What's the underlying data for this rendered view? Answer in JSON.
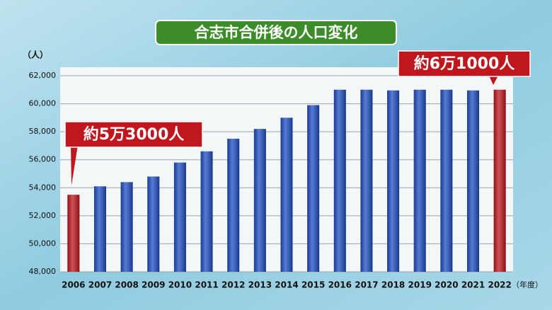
{
  "chart_data": {
    "type": "bar",
    "title": "合志市合併後の人口変化",
    "y_label": "（人）",
    "x_label": "（年度）",
    "annotations": [
      "約5万3000人",
      "約6万1000人"
    ],
    "categories": [
      "2006",
      "2007",
      "2008",
      "2009",
      "2010",
      "2011",
      "2012",
      "2013",
      "2014",
      "2015",
      "2016",
      "2017",
      "2018",
      "2019",
      "2020",
      "2021",
      "2022"
    ],
    "values": [
      53500,
      54100,
      54400,
      54800,
      55800,
      56600,
      57500,
      58200,
      59000,
      59900,
      61000,
      61000,
      60950,
      61000,
      61000,
      60950,
      61000
    ],
    "colors": [
      "#c0161d",
      "#1f4fc4",
      "#1f4fc4",
      "#1f4fc4",
      "#1f4fc4",
      "#1f4fc4",
      "#1f4fc4",
      "#1f4fc4",
      "#1f4fc4",
      "#1f4fc4",
      "#1f4fc4",
      "#1f4fc4",
      "#1f4fc4",
      "#1f4fc4",
      "#1f4fc4",
      "#1f4fc4",
      "#c0161d"
    ],
    "ylim": [
      48000,
      62000
    ],
    "yticks": [
      {
        "value": 48000,
        "label": "48,000"
      },
      {
        "value": 50000,
        "label": "50,000"
      },
      {
        "value": 52000,
        "label": "52,000"
      },
      {
        "value": 54000,
        "label": "54,000"
      },
      {
        "value": 56000,
        "label": "56,000"
      },
      {
        "value": 58000,
        "label": "58,000"
      },
      {
        "value": 60000,
        "label": "60,000"
      },
      {
        "value": 62000,
        "label": "62,000"
      }
    ],
    "grid": true
  }
}
